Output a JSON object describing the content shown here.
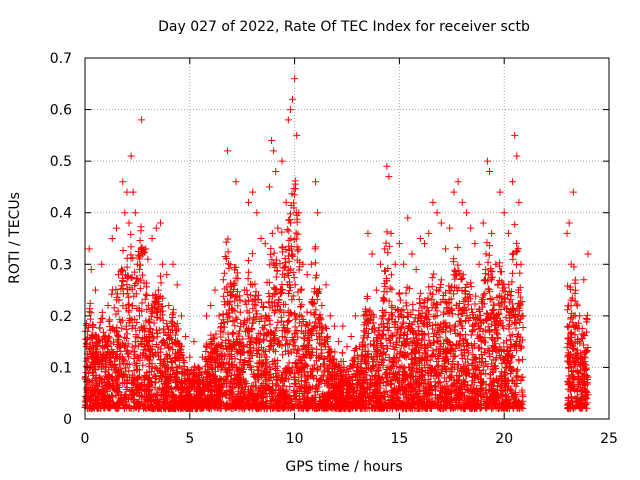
{
  "chart_data": {
    "type": "scatter",
    "title": "Day 027 of 2022, Rate Of TEC Index for receiver sctb",
    "xlabel": "GPS time / hours",
    "ylabel": "ROTI / TECUs",
    "xlim": [
      0,
      25
    ],
    "ylim": [
      0,
      0.7
    ],
    "xticks": [
      0,
      5,
      10,
      15,
      20,
      25
    ],
    "yticks": [
      0,
      0.1,
      0.2,
      0.3,
      0.4,
      0.5,
      0.6,
      0.7
    ],
    "xtick_labels": [
      "0",
      "5",
      "10",
      "15",
      "20",
      "25"
    ],
    "ytick_labels": [
      "0",
      "0.1",
      "0.2",
      "0.3",
      "0.4",
      "0.5",
      "0.6",
      "0.7"
    ],
    "grid": true,
    "marker": "+",
    "color": "#ff0000",
    "series": [
      {
        "points": [
          [
            0.0,
            0.08
          ],
          [
            0.2,
            0.33
          ],
          [
            0.3,
            0.29
          ],
          [
            0.5,
            0.25
          ],
          [
            0.6,
            0.12
          ],
          [
            0.8,
            0.3
          ],
          [
            1.0,
            0.1
          ],
          [
            1.1,
            0.22
          ],
          [
            1.3,
            0.35
          ],
          [
            1.5,
            0.37
          ],
          [
            1.6,
            0.28
          ],
          [
            1.8,
            0.46
          ],
          [
            1.9,
            0.4
          ],
          [
            2.0,
            0.44
          ],
          [
            2.1,
            0.38
          ],
          [
            2.2,
            0.51
          ],
          [
            2.3,
            0.44
          ],
          [
            2.4,
            0.4
          ],
          [
            2.5,
            0.3
          ],
          [
            2.6,
            0.2
          ],
          [
            2.7,
            0.58
          ],
          [
            2.9,
            0.33
          ],
          [
            3.0,
            0.31
          ],
          [
            3.2,
            0.35
          ],
          [
            3.4,
            0.37
          ],
          [
            3.5,
            0.25
          ],
          [
            3.6,
            0.38
          ],
          [
            3.7,
            0.3
          ],
          [
            3.9,
            0.28
          ],
          [
            4.0,
            0.22
          ],
          [
            4.2,
            0.3
          ],
          [
            4.4,
            0.26
          ],
          [
            4.6,
            0.2
          ],
          [
            4.8,
            0.16
          ],
          [
            5.0,
            0.12
          ],
          [
            5.2,
            0.15
          ],
          [
            5.4,
            0.1
          ],
          [
            5.6,
            0.12
          ],
          [
            5.8,
            0.2
          ],
          [
            6.0,
            0.22
          ],
          [
            6.2,
            0.25
          ],
          [
            6.4,
            0.2
          ],
          [
            6.6,
            0.27
          ],
          [
            6.8,
            0.52
          ],
          [
            7.0,
            0.24
          ],
          [
            7.2,
            0.46
          ],
          [
            7.4,
            0.23
          ],
          [
            7.6,
            0.25
          ],
          [
            7.8,
            0.42
          ],
          [
            8.0,
            0.44
          ],
          [
            8.2,
            0.4
          ],
          [
            8.4,
            0.35
          ],
          [
            8.6,
            0.34
          ],
          [
            8.8,
            0.45
          ],
          [
            8.9,
            0.54
          ],
          [
            9.0,
            0.52
          ],
          [
            9.1,
            0.48
          ],
          [
            9.2,
            0.37
          ],
          [
            9.4,
            0.5
          ],
          [
            9.6,
            0.42
          ],
          [
            9.7,
            0.58
          ],
          [
            9.8,
            0.6
          ],
          [
            9.9,
            0.62
          ],
          [
            10.0,
            0.66
          ],
          [
            10.1,
            0.55
          ],
          [
            10.2,
            0.4
          ],
          [
            10.4,
            0.3
          ],
          [
            10.6,
            0.28
          ],
          [
            10.8,
            0.3
          ],
          [
            11.0,
            0.46
          ],
          [
            11.1,
            0.4
          ],
          [
            11.3,
            0.22
          ],
          [
            11.5,
            0.26
          ],
          [
            11.7,
            0.2
          ],
          [
            11.9,
            0.18
          ],
          [
            12.1,
            0.15
          ],
          [
            12.3,
            0.18
          ],
          [
            12.5,
            0.14
          ],
          [
            12.7,
            0.16
          ],
          [
            12.9,
            0.2
          ],
          [
            13.1,
            0.14
          ],
          [
            13.3,
            0.2
          ],
          [
            13.5,
            0.36
          ],
          [
            13.7,
            0.32
          ],
          [
            13.9,
            0.25
          ],
          [
            14.1,
            0.3
          ],
          [
            14.3,
            0.33
          ],
          [
            14.4,
            0.49
          ],
          [
            14.5,
            0.47
          ],
          [
            14.6,
            0.36
          ],
          [
            14.8,
            0.3
          ],
          [
            15.0,
            0.34
          ],
          [
            15.2,
            0.3
          ],
          [
            15.4,
            0.39
          ],
          [
            15.6,
            0.32
          ],
          [
            15.8,
            0.29
          ],
          [
            16.0,
            0.35
          ],
          [
            16.2,
            0.34
          ],
          [
            16.4,
            0.36
          ],
          [
            16.6,
            0.42
          ],
          [
            16.8,
            0.4
          ],
          [
            17.0,
            0.38
          ],
          [
            17.2,
            0.33
          ],
          [
            17.4,
            0.37
          ],
          [
            17.6,
            0.44
          ],
          [
            17.8,
            0.46
          ],
          [
            18.0,
            0.42
          ],
          [
            18.2,
            0.4
          ],
          [
            18.4,
            0.37
          ],
          [
            18.6,
            0.34
          ],
          [
            18.8,
            0.3
          ],
          [
            19.0,
            0.38
          ],
          [
            19.2,
            0.5
          ],
          [
            19.3,
            0.48
          ],
          [
            19.4,
            0.36
          ],
          [
            19.6,
            0.3
          ],
          [
            19.8,
            0.44
          ],
          [
            20.0,
            0.4
          ],
          [
            20.2,
            0.36
          ],
          [
            20.4,
            0.46
          ],
          [
            20.5,
            0.55
          ],
          [
            20.6,
            0.51
          ],
          [
            20.7,
            0.42
          ],
          [
            20.8,
            0.3
          ],
          [
            20.9,
            0.2
          ],
          [
            23.0,
            0.36
          ],
          [
            23.1,
            0.38
          ],
          [
            23.2,
            0.3
          ],
          [
            23.3,
            0.44
          ],
          [
            23.4,
            0.25
          ],
          [
            23.6,
            0.2
          ],
          [
            23.8,
            0.27
          ],
          [
            24.0,
            0.32
          ]
        ]
      }
    ]
  }
}
